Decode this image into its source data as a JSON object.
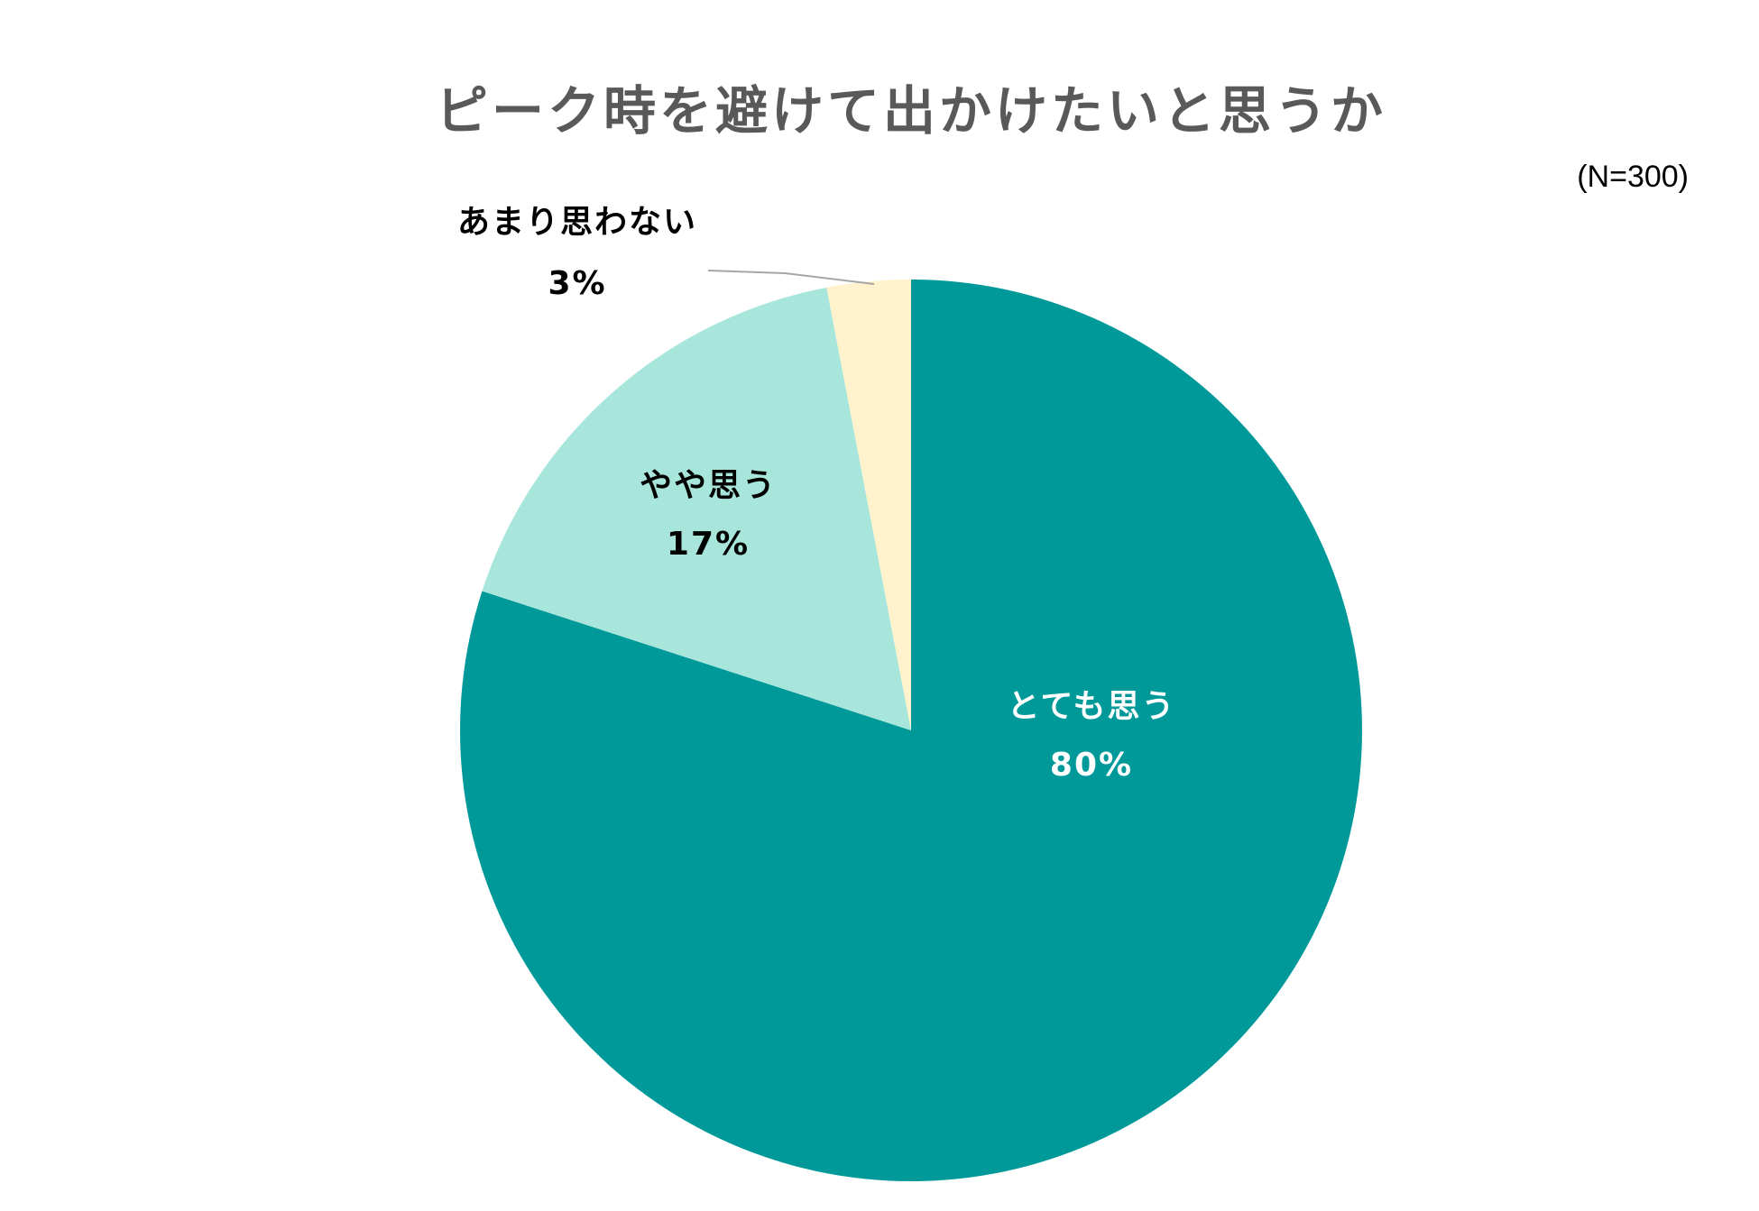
{
  "chart_data": {
    "type": "pie",
    "title": "ピーク時を避けて出かけたいと思うか",
    "subtitle": "(N=300)",
    "categories": [
      "とても思う",
      "やや思う",
      "あまり思わない"
    ],
    "values": [
      80,
      17,
      3
    ],
    "value_labels": [
      "80%",
      "17%",
      "3%"
    ],
    "colors": [
      "#009999",
      "#a8e6dc",
      "#fff2cc"
    ]
  }
}
